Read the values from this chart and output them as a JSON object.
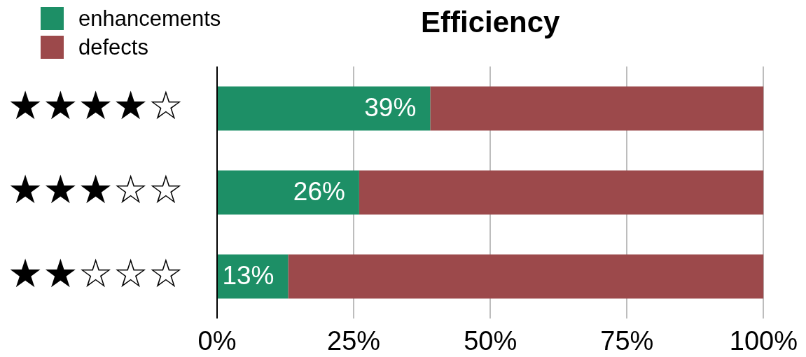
{
  "chart_data": {
    "type": "bar",
    "orientation": "horizontal",
    "stacked": true,
    "title": "Efficiency",
    "categories": [
      "★★★★☆",
      "★★★☆☆",
      "★★☆☆☆"
    ],
    "series": [
      {
        "name": "enhancements",
        "color": "#1d8f66",
        "values": [
          39,
          26,
          13
        ],
        "value_labels": [
          "39%",
          "26%",
          "13%"
        ]
      },
      {
        "name": "defects",
        "color": "#9c494b",
        "values": [
          61,
          74,
          87
        ]
      }
    ],
    "xlim": [
      0,
      100
    ],
    "xticks": [
      {
        "value": 0,
        "label": "0%"
      },
      {
        "value": 25,
        "label": "25%"
      },
      {
        "value": 50,
        "label": "50%"
      },
      {
        "value": 75,
        "label": "75%"
      },
      {
        "value": 100,
        "label": "100%"
      }
    ],
    "grid": "x",
    "legend": "top left"
  }
}
